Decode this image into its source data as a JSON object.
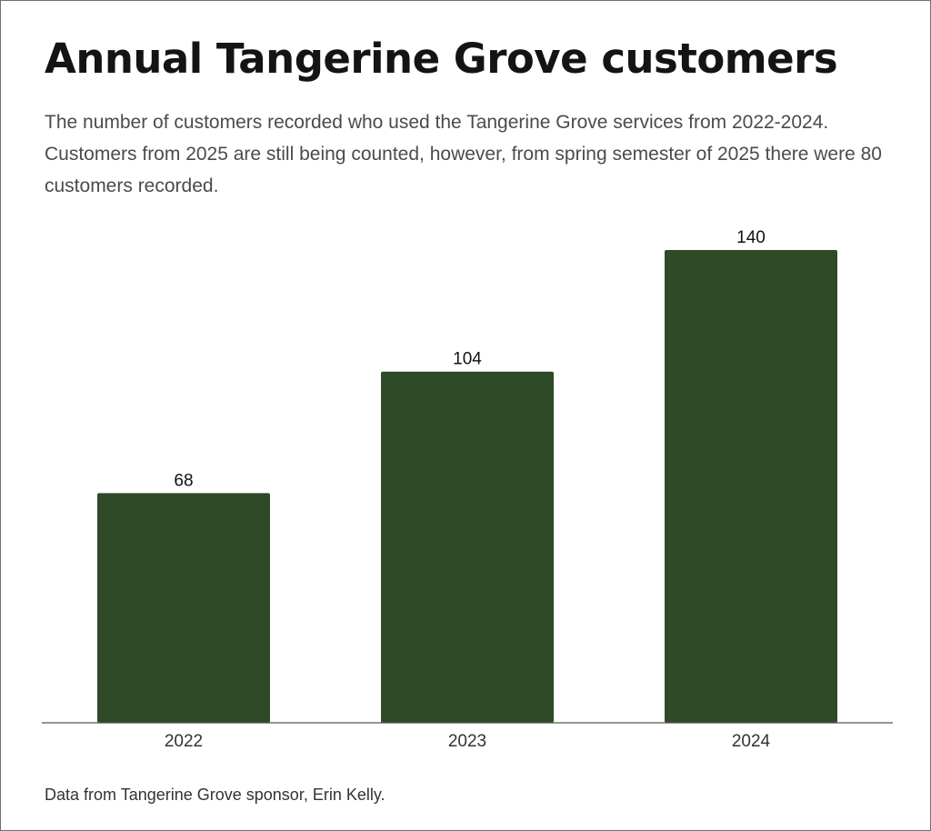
{
  "header": {
    "title": "Annual Tangerine Grove customers",
    "subtitle": "The number of customers recorded who used the Tangerine Grove services from 2022-2024. Customers from 2025 are still being counted, however, from spring semester of 2025 there were 80 customers recorded."
  },
  "footer": {
    "source": "Data from Tangerine Grove sponsor, Erin Kelly."
  },
  "chart_data": {
    "type": "bar",
    "categories": [
      "2022",
      "2023",
      "2024"
    ],
    "values": [
      68,
      104,
      140
    ],
    "title": "Annual Tangerine Grove customers",
    "xlabel": "",
    "ylabel": "",
    "ylim": [
      0,
      140
    ],
    "grid": false,
    "legend": "none",
    "data_labels": true,
    "bar_color": "#2e4a27",
    "axis_color": "#555555"
  }
}
